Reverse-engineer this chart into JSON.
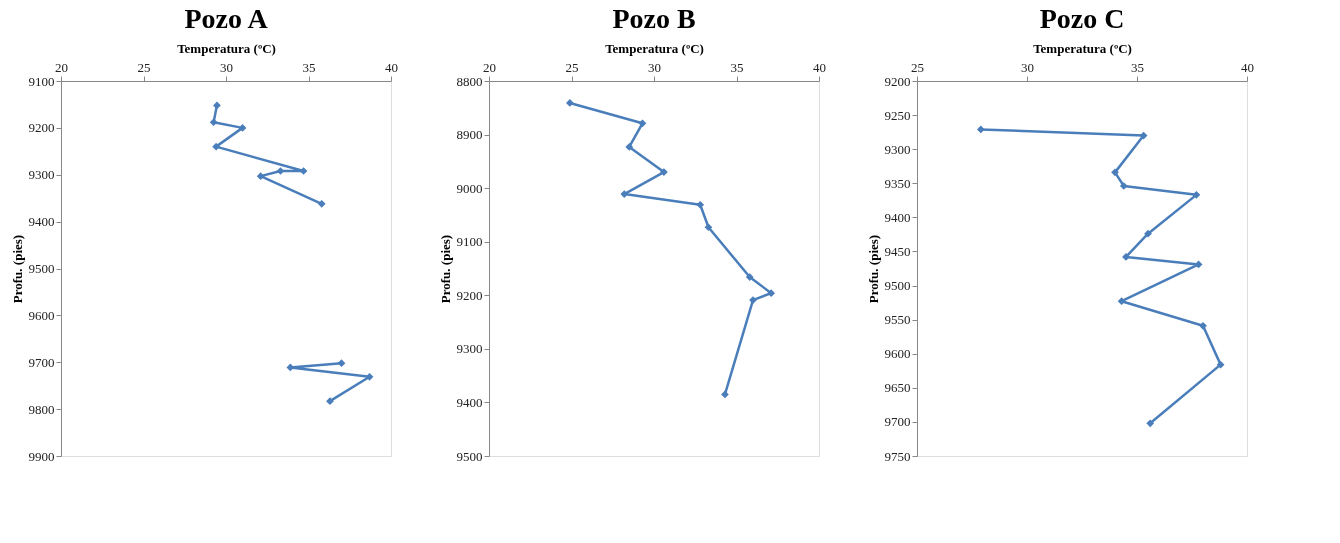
{
  "chart_data": [
    {
      "type": "line",
      "title": "Pozo A",
      "xlabel": "Temperatura (ºC)",
      "ylabel": "Profu. (pies)",
      "xlim": [
        20,
        40
      ],
      "xticks": [
        20,
        25,
        30,
        35,
        40
      ],
      "ylim": [
        9900,
        9100
      ],
      "yticks": [
        9100,
        9200,
        9300,
        9400,
        9500,
        9600,
        9700,
        9800,
        9900
      ],
      "grid": false,
      "legend": false,
      "marker": "diamond",
      "line_style": "solid",
      "series": [
        {
          "color": "#4a7ebb",
          "x": [
            29.45,
            29.25,
            31.0,
            29.4,
            34.7,
            33.3,
            32.1,
            35.8,
            null,
            37.0,
            33.9,
            38.7,
            36.3
          ],
          "values": [
            9152,
            9188,
            9200,
            9240,
            9292,
            9292,
            9303,
            9362,
            null,
            9702,
            9711,
            9731,
            9783
          ]
        }
      ]
    },
    {
      "type": "line",
      "title": "Pozo B",
      "xlabel": "Temperatura (ºC)",
      "ylabel": "Profu. (pies)",
      "xlim": [
        20,
        40
      ],
      "xticks": [
        20,
        25,
        30,
        35,
        40
      ],
      "ylim": [
        9500,
        8800
      ],
      "yticks": [
        8800,
        8900,
        9000,
        9100,
        9200,
        9300,
        9400,
        9500
      ],
      "grid": false,
      "legend": false,
      "marker": "diamond",
      "line_style": "solid",
      "series": [
        {
          "color": "#4a7ebb",
          "x": [
            24.9,
            29.3,
            28.5,
            30.6,
            28.2,
            32.8,
            33.3,
            35.8,
            37.1,
            36.0,
            34.3
          ],
          "values": [
            8841,
            8879,
            8923,
            8970,
            9011,
            9031,
            9073,
            9166,
            9196,
            9209,
            9385
          ]
        }
      ]
    },
    {
      "type": "line",
      "title": "Pozo C",
      "xlabel": "Temperatura (ºC)",
      "ylabel": "Profu. (pies)",
      "xlim": [
        25,
        40
      ],
      "xticks": [
        25,
        30,
        35,
        40
      ],
      "ylim": [
        9750,
        9200
      ],
      "yticks": [
        9200,
        9250,
        9300,
        9350,
        9400,
        9450,
        9500,
        9550,
        9600,
        9650,
        9700,
        9750
      ],
      "grid": false,
      "legend": false,
      "marker": "diamond",
      "line_style": "solid",
      "series": [
        {
          "color": "#4a7ebb",
          "x": [
            27.9,
            35.3,
            34.0,
            34.4,
            37.7,
            35.5,
            34.5,
            37.8,
            34.3,
            38.0,
            38.8,
            35.6
          ],
          "values": [
            9271,
            9280,
            9334,
            9354,
            9367,
            9424,
            9458,
            9469,
            9523,
            9559,
            9616,
            9702
          ]
        }
      ]
    }
  ]
}
